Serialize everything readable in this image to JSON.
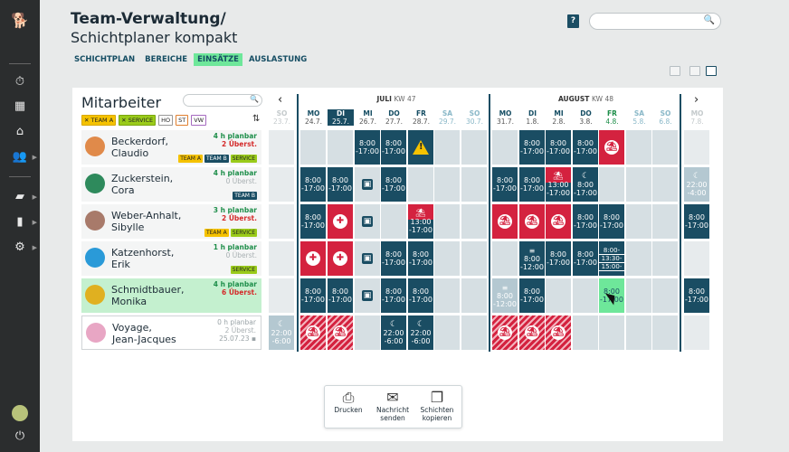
{
  "header": {
    "title": "Team-Verwaltung/",
    "subtitle": "Schichtplaner kompakt",
    "help": "?",
    "search_placeholder": ""
  },
  "tabs": [
    {
      "label": "SCHICHTPLAN"
    },
    {
      "label": "BEREICHE"
    },
    {
      "label": "EINSÄTZE",
      "active": true
    },
    {
      "label": "AUSLASTUNG"
    }
  ],
  "employees_panel": {
    "title": "Mitarbeiter",
    "search_placeholder": "",
    "filters": [
      "TEAM A",
      "SERVICE",
      "HO",
      "ST",
      "VW"
    ]
  },
  "weeks": [
    {
      "month": "JULI",
      "kw": "KW 47"
    },
    {
      "month": "AUGUST",
      "kw": "KW 48"
    }
  ],
  "days": [
    {
      "d": "SO",
      "n": "23.7."
    },
    {
      "d": "MO",
      "n": "24.7."
    },
    {
      "d": "DI",
      "n": "25.7."
    },
    {
      "d": "MI",
      "n": "26.7."
    },
    {
      "d": "DO",
      "n": "27.7."
    },
    {
      "d": "FR",
      "n": "28.7."
    },
    {
      "d": "SA",
      "n": "29.7."
    },
    {
      "d": "SO",
      "n": "30.7."
    },
    {
      "d": "MO",
      "n": "31.7."
    },
    {
      "d": "DI",
      "n": "1.8."
    },
    {
      "d": "MI",
      "n": "2.8."
    },
    {
      "d": "DO",
      "n": "3.8."
    },
    {
      "d": "FR",
      "n": "4.8."
    },
    {
      "d": "SA",
      "n": "5.8."
    },
    {
      "d": "SO",
      "n": "6.8."
    },
    {
      "d": "MO",
      "n": "7.8."
    }
  ],
  "employees": [
    {
      "last": "Beckerdorf,",
      "first": "Claudio",
      "planned": "4 h planbar",
      "overtime": "2 Überst.",
      "badges": [
        "TEAM A",
        "TEAM B",
        "SERVICE"
      ]
    },
    {
      "last": "Zuckerstein,",
      "first": "Cora",
      "planned": "4 h planbar",
      "overtime": "0 Überst.",
      "badges": [
        "TEAM B"
      ]
    },
    {
      "last": "Weber-Anhalt,",
      "first": "Sibylle",
      "planned": "3 h planbar",
      "overtime": "2 Überst.",
      "badges": [
        "TEAM A",
        "SERVICE"
      ]
    },
    {
      "last": "Katzenhorst,",
      "first": "Erik",
      "planned": "1 h planbar",
      "overtime": "0 Überst.",
      "badges": [
        "SERVICE"
      ]
    },
    {
      "last": "Schmidtbauer,",
      "first": "Monika",
      "planned": "4 h planbar",
      "overtime": "6 Überst.",
      "badges": []
    },
    {
      "last": "Voyage,",
      "first": "Jean-Jacques",
      "planned": "0 h planbar",
      "overtime": "2 Überst.",
      "date": "25.07.23",
      "badges": []
    }
  ],
  "shift": {
    "start": "8:00",
    "end": "-17:00",
    "night_start": "22:00",
    "night_end": "-6:00",
    "night_end2": "-4:00",
    "late_start": "13:00",
    "late_end": "-17:00",
    "split_end": "-12:00",
    "multi": [
      "8:00-",
      "13:30-",
      "15:00-"
    ]
  },
  "bottom": {
    "print": "Drucken",
    "message_l1": "Nachricht",
    "message_l2": "senden",
    "copy_l1": "Schichten",
    "copy_l2": "kopieren"
  },
  "colors": {
    "shift": "#1a4d63",
    "absence": "#d4223f",
    "highlight": "#6ee79a",
    "warning": "#f5c200"
  }
}
